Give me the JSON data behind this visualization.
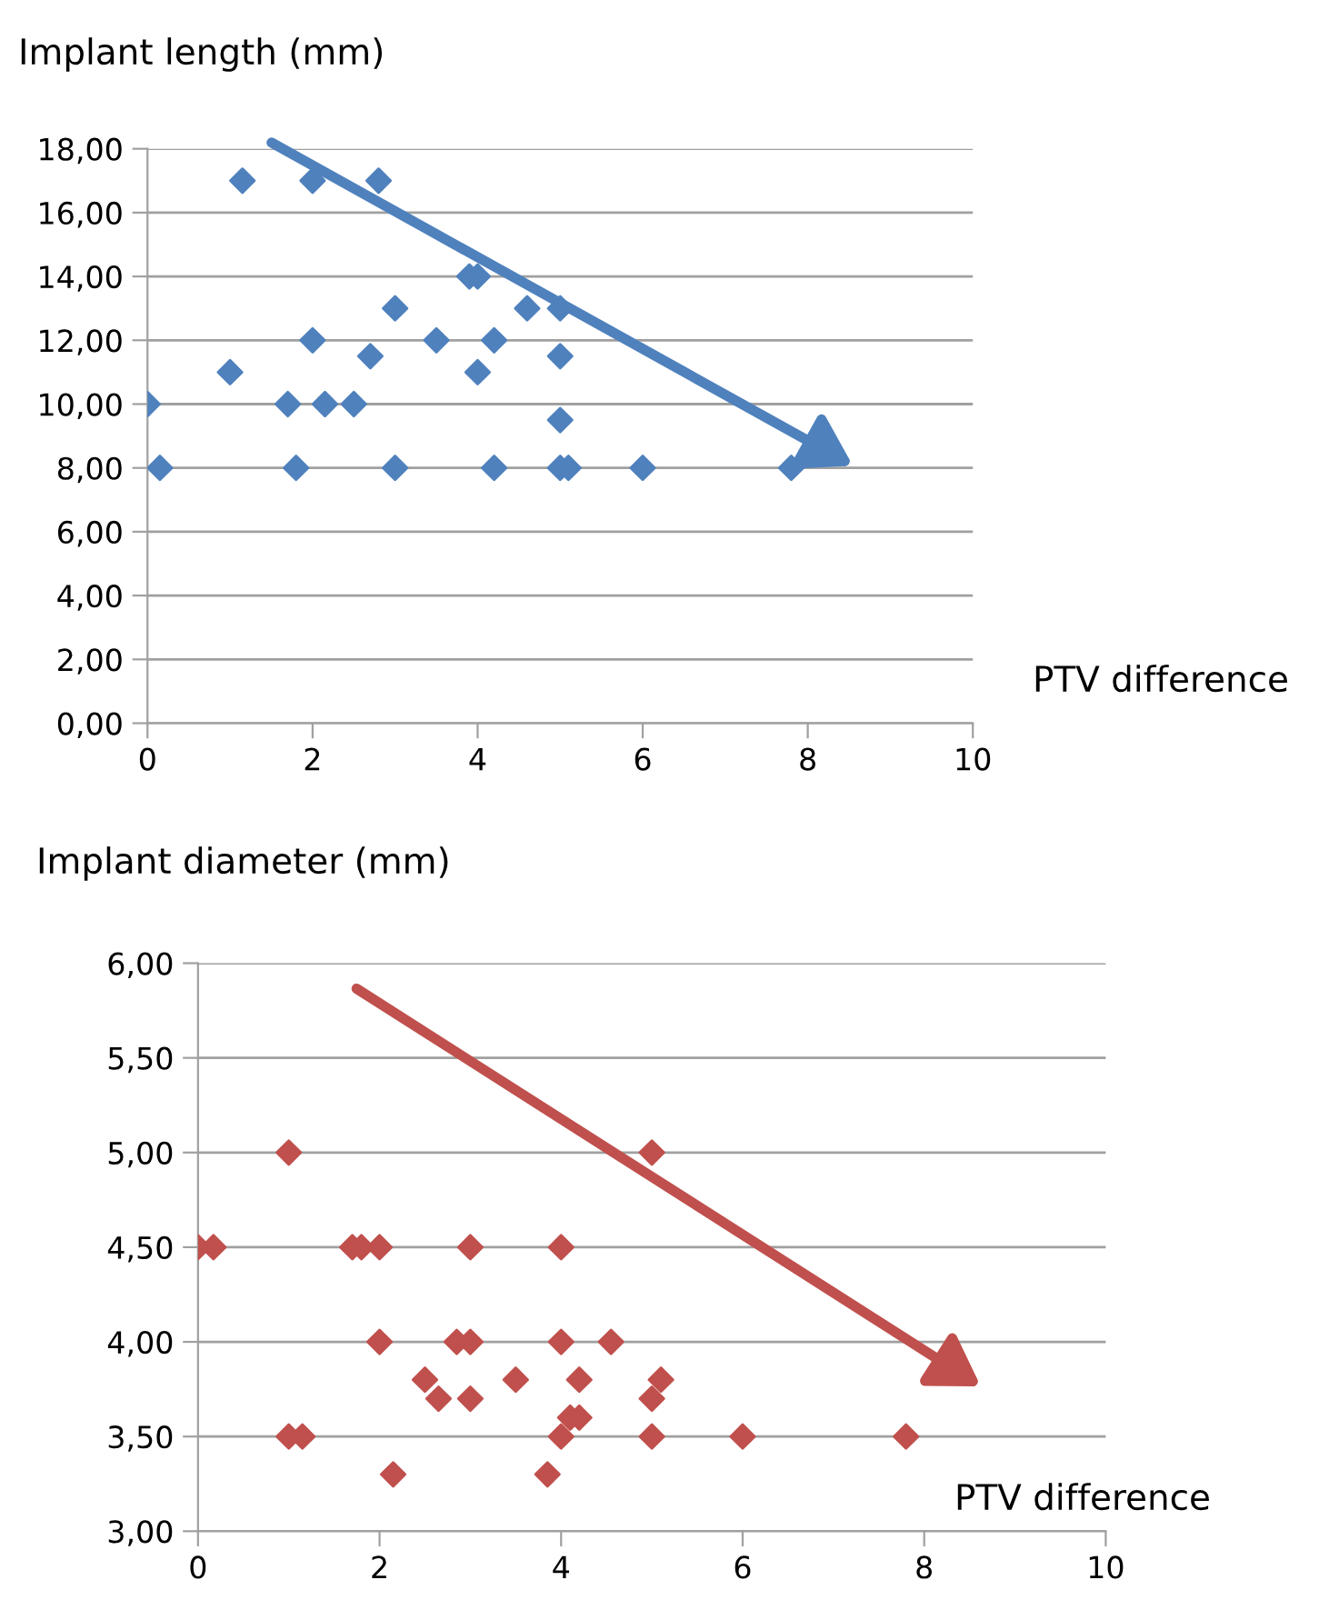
{
  "chart_data": [
    {
      "type": "scatter",
      "ylabel": "Implant length (mm)",
      "xlabel": "PTV difference",
      "marker": "diamond",
      "grid": "y",
      "legend": false,
      "xlim": [
        0,
        10
      ],
      "xticks": [
        0,
        2,
        4,
        6,
        8,
        10
      ],
      "ylim": [
        0,
        18
      ],
      "yticks": [
        {
          "value": 0,
          "label": "0,00"
        },
        {
          "value": 2,
          "label": "2,00"
        },
        {
          "value": 4,
          "label": "4,00"
        },
        {
          "value": 6,
          "label": "6,00"
        },
        {
          "value": 8,
          "label": "8,00"
        },
        {
          "value": 10,
          "label": "10,00"
        },
        {
          "value": 12,
          "label": "12,00"
        },
        {
          "value": 14,
          "label": "14,00"
        },
        {
          "value": 16,
          "label": "16,00"
        },
        {
          "value": 18,
          "label": "18,00"
        }
      ],
      "series": [
        {
          "color": "#4f81bd",
          "x": [
            0,
            0.15,
            1.15,
            1,
            1.7,
            1.8,
            2,
            2,
            2.15,
            2.5,
            2.7,
            2.8,
            3,
            3,
            3.5,
            3.9,
            4,
            4,
            4.2,
            4.2,
            4.6,
            5,
            5,
            5,
            5,
            5.1,
            6,
            7.8
          ],
          "values": [
            10,
            8,
            17,
            11,
            10,
            8,
            17,
            12,
            10,
            10,
            11.5,
            17,
            13,
            8,
            12,
            14,
            14,
            11,
            12,
            8,
            13,
            13,
            11.5,
            9.5,
            8,
            8,
            8,
            8
          ]
        }
      ]
    },
    {
      "type": "scatter",
      "ylabel": "Implant diameter (mm)",
      "xlabel": "PTV difference",
      "marker": "diamond",
      "grid": "y",
      "legend": false,
      "xlim": [
        0,
        10
      ],
      "xticks": [
        0,
        2,
        4,
        6,
        8,
        10
      ],
      "ylim": [
        3,
        6
      ],
      "yticks": [
        {
          "value": 3,
          "label": "3,00"
        },
        {
          "value": 3.5,
          "label": "3,50"
        },
        {
          "value": 4,
          "label": "4,00"
        },
        {
          "value": 4.5,
          "label": "4,50"
        },
        {
          "value": 5,
          "label": "5,00"
        },
        {
          "value": 5.5,
          "label": "5,50"
        },
        {
          "value": 6,
          "label": "6,00"
        }
      ],
      "series": [
        {
          "color": "#c0504d",
          "x": [
            0,
            0.17,
            1,
            1,
            1.15,
            1.7,
            1.8,
            2,
            2,
            2.15,
            2.5,
            2.65,
            2.85,
            3,
            3,
            3,
            3.5,
            3.85,
            4,
            4,
            4,
            4.1,
            4.2,
            4.2,
            4.55,
            5,
            5,
            5,
            5.1,
            6,
            7.8
          ],
          "values": [
            4.5,
            4.5,
            5,
            3.5,
            3.5,
            4.5,
            4.5,
            4.5,
            4,
            3.3,
            3.8,
            3.7,
            4,
            4,
            4.5,
            3.7,
            3.8,
            3.3,
            4.5,
            4,
            3.5,
            3.6,
            3.6,
            3.8,
            4,
            5,
            3.5,
            3.7,
            3.8,
            3.5,
            3.5
          ]
        }
      ]
    }
  ]
}
